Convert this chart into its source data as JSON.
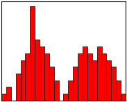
{
  "bar_values": [
    1,
    2,
    0,
    4,
    6,
    7,
    14,
    9,
    8,
    7,
    5,
    3,
    0,
    1,
    3,
    5,
    7,
    8,
    7,
    6,
    8,
    7,
    6,
    5,
    3,
    1
  ],
  "bar_color": "#ff0000",
  "edge_color": "#000000",
  "background_color": "#ffffff",
  "linewidth": 0.5
}
